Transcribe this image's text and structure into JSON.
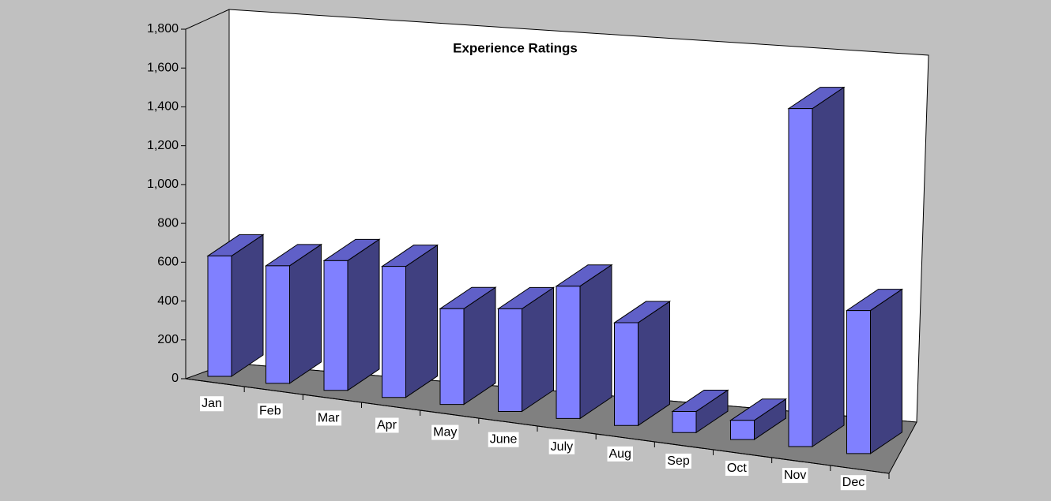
{
  "chart_data": {
    "type": "bar3d",
    "title": "Experience Ratings",
    "categories": [
      "Jan",
      "Feb",
      "Mar",
      "Apr",
      "May",
      "June",
      "July",
      "Aug",
      "Sep",
      "Oct",
      "Nov",
      "Dec"
    ],
    "values": [
      620,
      595,
      645,
      640,
      460,
      485,
      615,
      470,
      95,
      85,
      1475,
      615
    ],
    "color": "#8080ff",
    "ylim": [
      0,
      1800
    ],
    "yticks": [
      0,
      {
        "value": 200,
        "label": "200"
      },
      400,
      600,
      800,
      {
        "value": 1000,
        "label": "1,000"
      },
      {
        "value": 1200,
        "label": "1,200"
      },
      {
        "value": 1400,
        "label": "1,400"
      },
      {
        "value": 1600,
        "label": "1,600"
      },
      {
        "value": 1800,
        "label": "1,800"
      }
    ]
  }
}
